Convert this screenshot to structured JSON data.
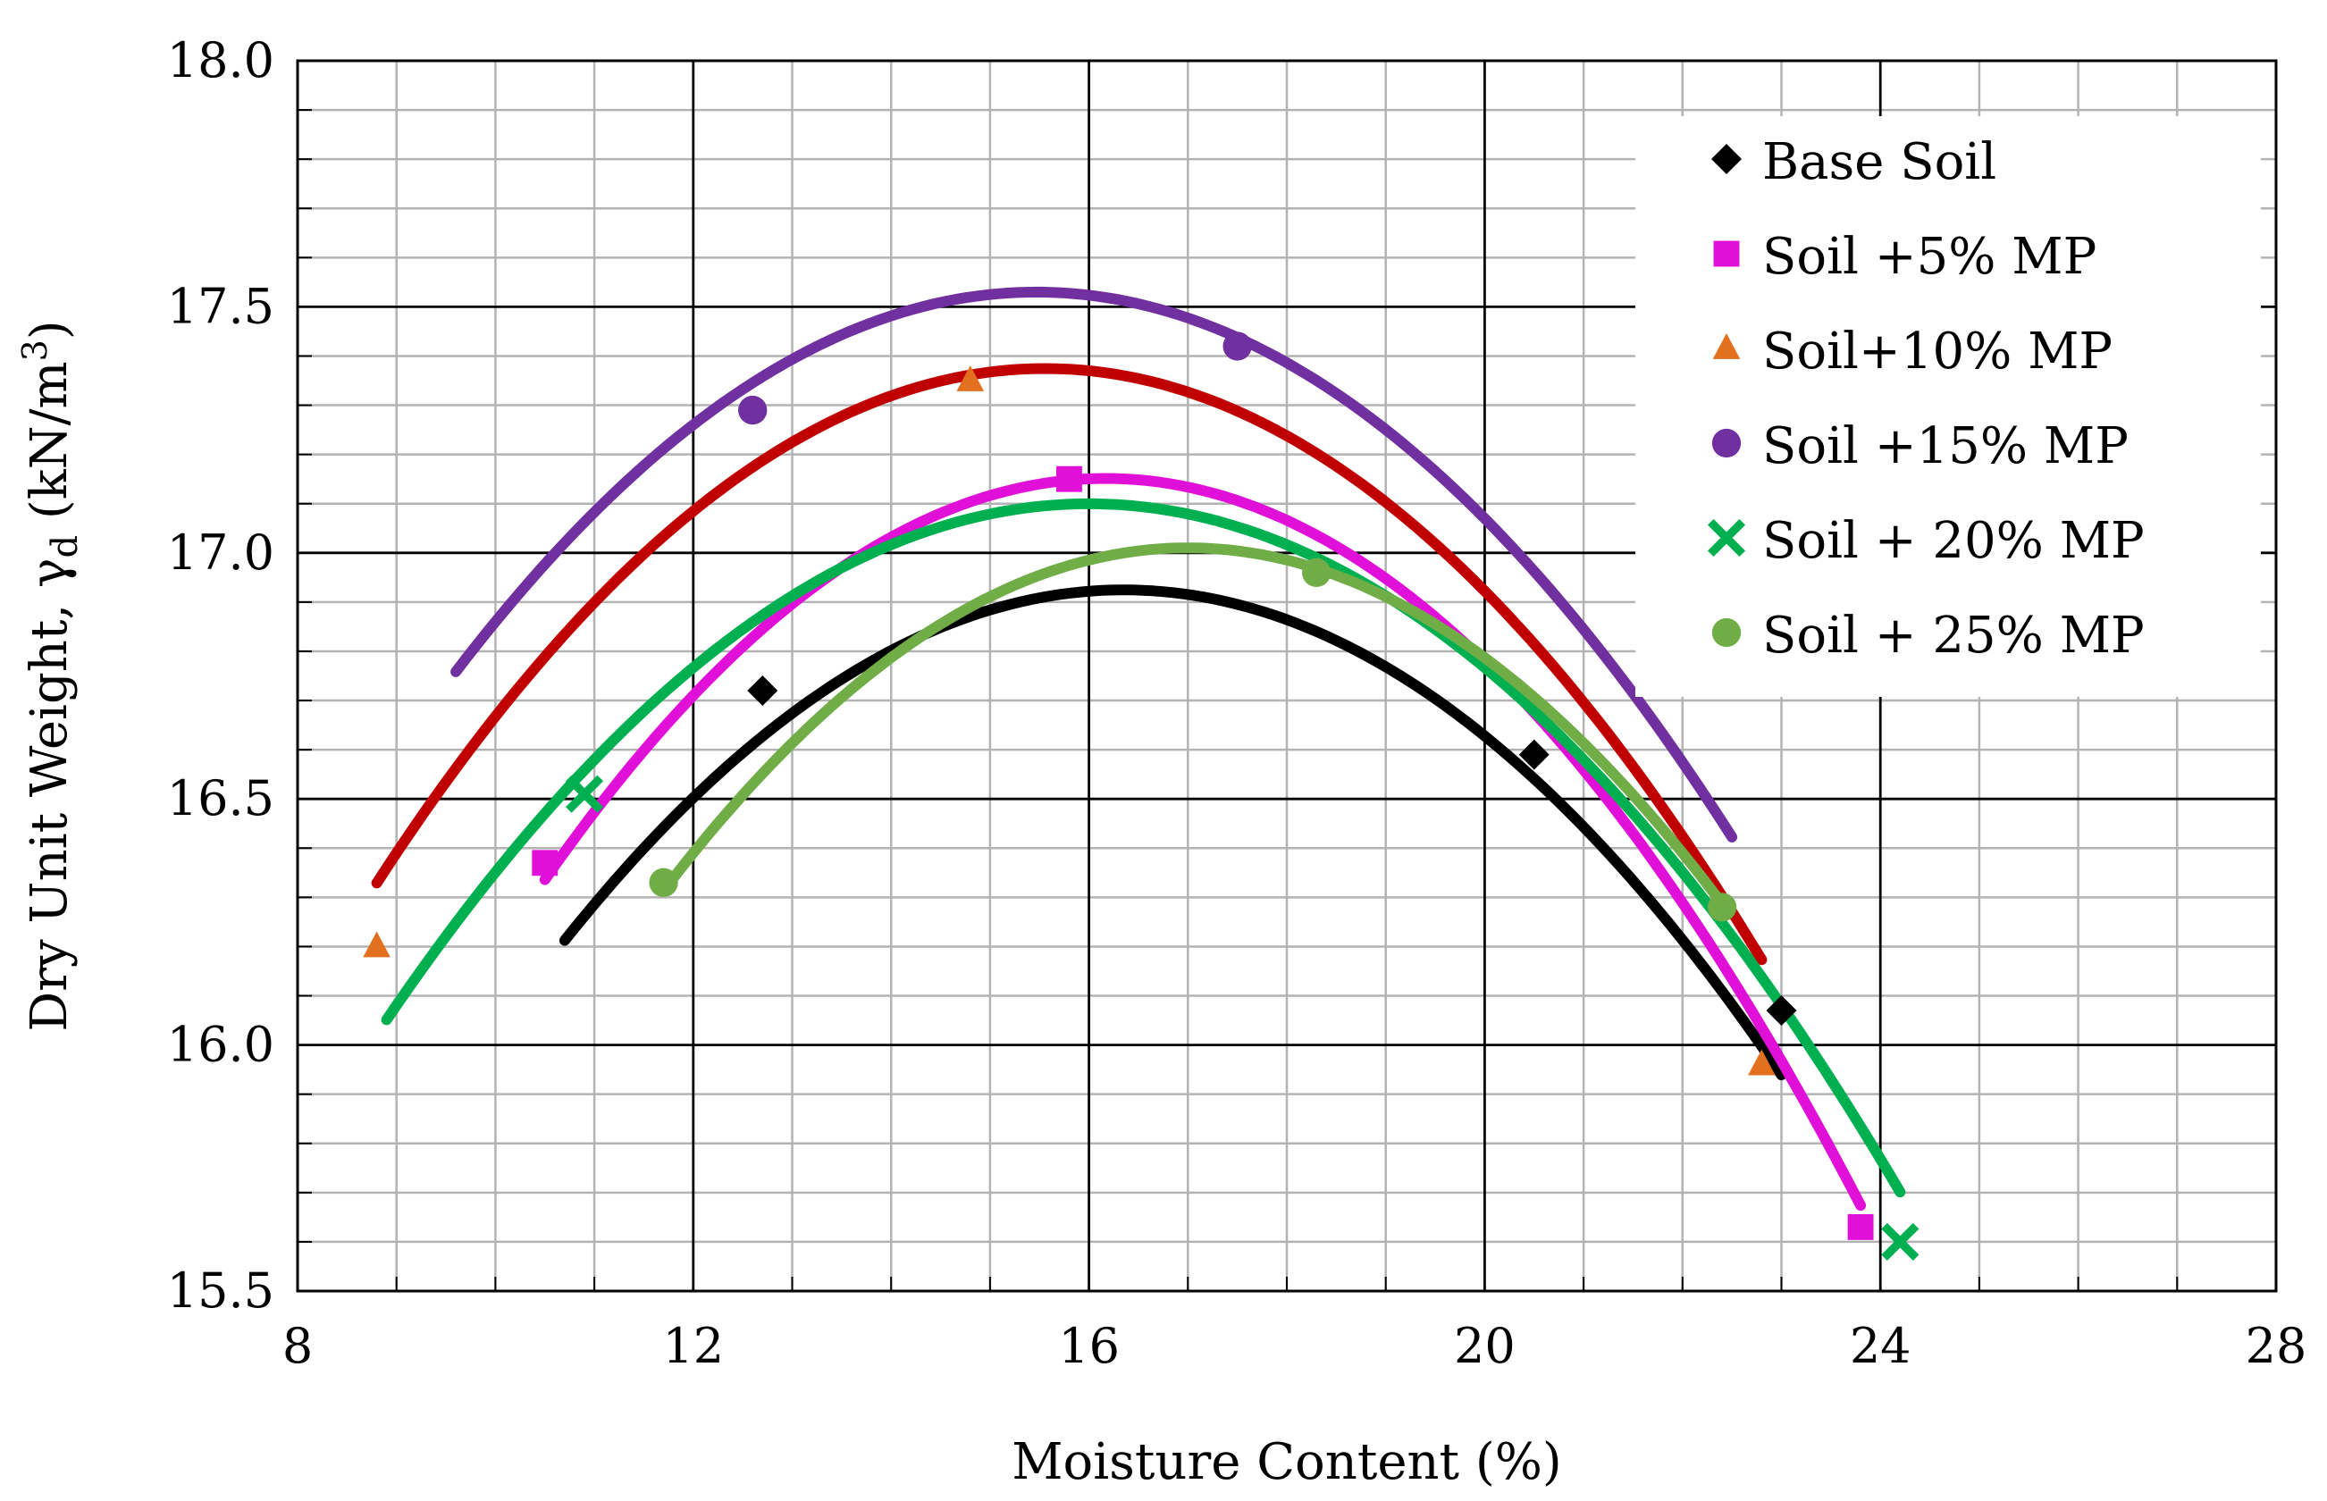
{
  "chart_data": {
    "type": "scatter",
    "title": "",
    "xlabel": "Moisture Content (%)",
    "ylabel_parts": {
      "main": "Dry Unit Weight, γ",
      "subscript": "d",
      "unit_open": " (kN/m",
      "superscript": "3",
      "unit_close": ")"
    },
    "xlim": [
      8,
      28
    ],
    "ylim": [
      15.5,
      18.0
    ],
    "x_major_ticks": [
      8,
      12,
      16,
      20,
      24,
      28
    ],
    "x_tick_labels": [
      "8",
      "12",
      "16",
      "20",
      "24",
      "28"
    ],
    "y_major_ticks": [
      15.5,
      16.0,
      16.5,
      17.0,
      17.5,
      18.0
    ],
    "y_tick_labels": [
      "15.5",
      "16.0",
      "16.5",
      "17.0",
      "17.5",
      "18.0"
    ],
    "x_minor_step": 1,
    "y_minor_step": 0.1,
    "grid": true,
    "legend_position": "top-right",
    "series": [
      {
        "name": "Base Soil",
        "color": "#000000",
        "marker": "diamond",
        "points": [
          [
            12.7,
            16.72
          ],
          [
            20.5,
            16.59
          ],
          [
            23.0,
            16.07
          ]
        ],
        "fit": {
          "x_range": [
            10.7,
            23.0
          ],
          "coef": [
            -0.0223,
            0.7293,
            10.962
          ]
        }
      },
      {
        "name": "Soil +5% MP",
        "color": "#e010d8",
        "marker": "square",
        "points": [
          [
            10.5,
            16.37
          ],
          [
            15.8,
            17.15
          ],
          [
            23.8,
            15.63
          ]
        ],
        "fit": {
          "x_range": [
            10.5,
            23.8
          ],
          "coef": [
            -0.02537,
            0.82042,
            10.5185
          ]
        }
      },
      {
        "name": "Soil+10% MP",
        "color": "#e2701f",
        "marker": "triangle",
        "points": [
          [
            8.8,
            16.2
          ],
          [
            14.8,
            17.35
          ],
          [
            22.8,
            15.96
          ]
        ],
        "fit_color": "#c00000",
        "fit": {
          "x_range": [
            8.8,
            22.8
          ],
          "coef": [
            -0.0229,
            0.7125,
            11.8325
          ]
        }
      },
      {
        "name": "Soil +15% MP",
        "color": "#7030a0",
        "marker": "circle",
        "points": [
          [
            12.6,
            17.29
          ],
          [
            17.5,
            17.42
          ]
        ],
        "fit": {
          "x_range": [
            9.6,
            22.5
          ],
          "coef": [
            -0.0224,
            0.693,
            12.17
          ]
        }
      },
      {
        "name": "Soil + 20% MP",
        "color": "#00b050",
        "marker": "x",
        "points": [
          [
            10.9,
            16.51
          ],
          [
            24.2,
            15.6
          ]
        ],
        "fit": {
          "x_range": [
            8.9,
            24.2
          ],
          "coef": [
            -0.0208,
            0.6656,
            11.775
          ]
        }
      },
      {
        "name": "Soil + 25% MP",
        "color": "#70ad47",
        "marker": "circle",
        "points": [
          [
            11.7,
            16.33
          ],
          [
            18.3,
            16.96
          ],
          [
            22.4,
            16.28
          ]
        ],
        "fit": {
          "x_range": [
            11.7,
            22.4
          ],
          "coef": [
            -0.0248,
            0.8432,
            9.843
          ]
        }
      }
    ]
  }
}
